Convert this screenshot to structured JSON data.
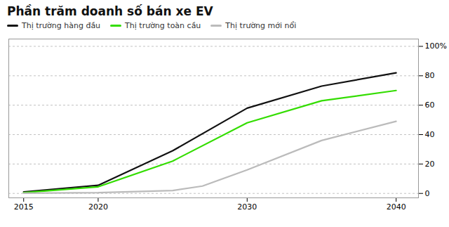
{
  "chart_data": {
    "type": "line",
    "title": "Phần trăm doanh số bán xe EV",
    "series": [
      {
        "name": "Thị trường hàng đầu",
        "color": "#111111",
        "x": [
          2015,
          2020,
          2025,
          2030,
          2035,
          2040
        ],
        "values": [
          1.0,
          5.5,
          29.0,
          58.0,
          73.0,
          82.0
        ]
      },
      {
        "name": "Thị trường toàn cầu",
        "color": "#33dd00",
        "x": [
          2015,
          2020,
          2025,
          2030,
          2035,
          2040
        ],
        "values": [
          0.5,
          4.5,
          22.0,
          48.0,
          63.0,
          70.0
        ]
      },
      {
        "name": "Thị trường mới nổi",
        "color": "#bbbbbb",
        "x": [
          2015,
          2020,
          2025,
          2027,
          2030,
          2035,
          2040
        ],
        "values": [
          0.2,
          0.5,
          2.0,
          5.0,
          16.0,
          36.0,
          49.0
        ]
      }
    ],
    "xlim": [
      2014.0,
      2041.5
    ],
    "xticks": [
      2015,
      2020,
      2030,
      2040
    ],
    "ylim": [
      -3,
      105
    ],
    "yticks": [
      0,
      20,
      40,
      60,
      80,
      {
        "value": 100,
        "label": "100%"
      }
    ],
    "grid": true,
    "legend": "upper-left"
  }
}
